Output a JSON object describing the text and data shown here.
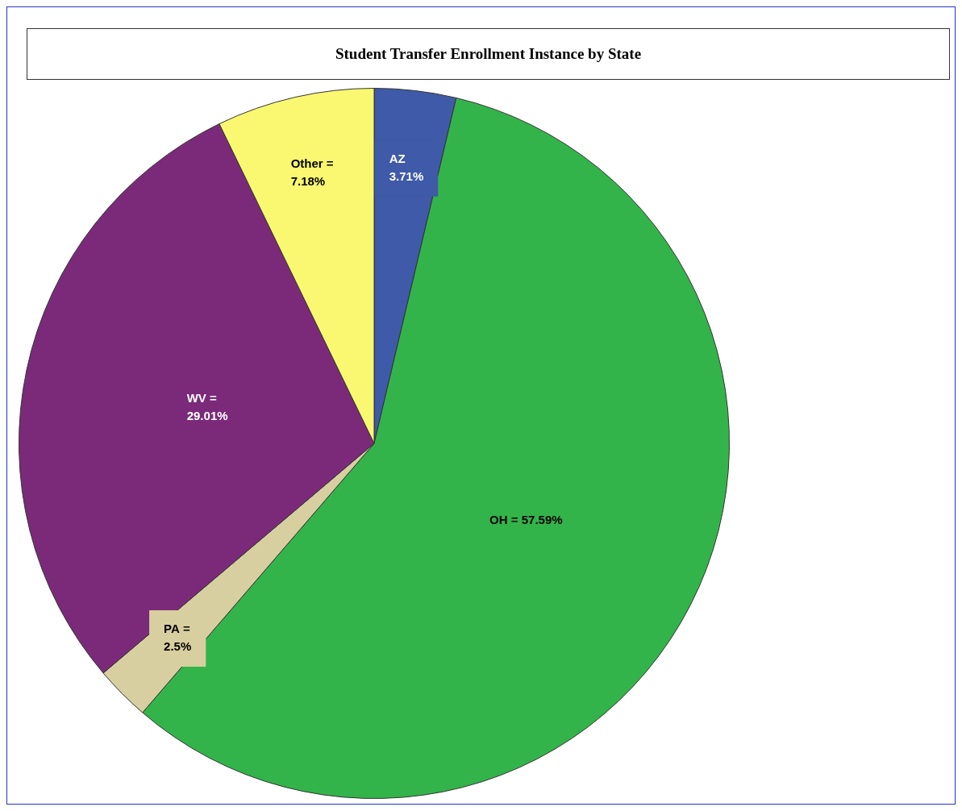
{
  "chart_data": {
    "type": "pie",
    "title": "Student Transfer Enrollment Instance by State",
    "categories": [
      "AZ",
      "OH",
      "PA",
      "WV",
      "Other"
    ],
    "values": [
      3.71,
      57.59,
      2.5,
      29.01,
      7.18
    ],
    "colors": [
      "#3f5aa8",
      "#33b44a",
      "#d8cfa0",
      "#7b2a7a",
      "#faf870"
    ],
    "value_labels": [
      "\n3.71%",
      "= 57.59%",
      "=\n2.5%",
      "=\n29.01%",
      "=\n7.18%"
    ],
    "legend": false
  }
}
